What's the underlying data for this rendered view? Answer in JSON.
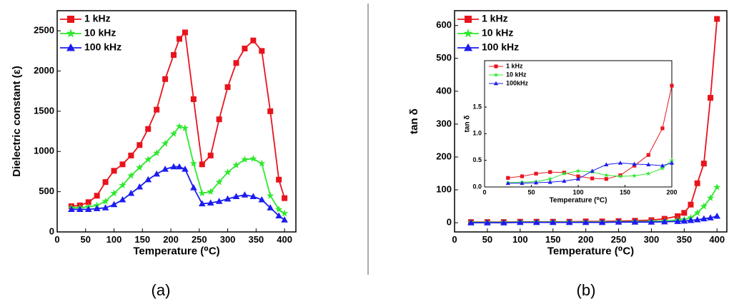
{
  "chart_data": [
    {
      "type": "line",
      "panel_label": "(a)",
      "x_label": "Temperature (⁰C)",
      "y_label": "Dielectric constant (ε)",
      "xlim": [
        0,
        420
      ],
      "xticks": [
        0,
        50,
        100,
        150,
        200,
        250,
        300,
        350,
        400
      ],
      "ylim": [
        0,
        2750
      ],
      "yticks": [
        0,
        500,
        1000,
        1500,
        2000,
        2500
      ],
      "legend": "upper left",
      "x": [
        25,
        40,
        55,
        70,
        85,
        100,
        115,
        130,
        145,
        160,
        175,
        190,
        205,
        215,
        225,
        240,
        255,
        270,
        285,
        300,
        315,
        330,
        345,
        360,
        375,
        390,
        400
      ],
      "series": [
        {
          "name": "1 kHz",
          "color": "#e8141c",
          "marker": "square",
          "values": [
            320,
            330,
            370,
            450,
            620,
            760,
            840,
            950,
            1080,
            1280,
            1520,
            1900,
            2200,
            2400,
            2480,
            1650,
            840,
            950,
            1400,
            1800,
            2100,
            2280,
            2380,
            2250,
            1500,
            650,
            420
          ]
        },
        {
          "name": "10 kHz",
          "color": "#2ee82e",
          "marker": "star",
          "values": [
            300,
            300,
            310,
            330,
            380,
            480,
            580,
            700,
            800,
            900,
            980,
            1100,
            1220,
            1310,
            1290,
            850,
            480,
            500,
            620,
            740,
            830,
            900,
            910,
            850,
            450,
            280,
            230
          ]
        },
        {
          "name": "100 kHz",
          "color": "#1c1cf0",
          "marker": "triangle",
          "values": [
            280,
            280,
            280,
            290,
            300,
            340,
            400,
            480,
            560,
            650,
            720,
            780,
            810,
            810,
            780,
            550,
            350,
            360,
            380,
            410,
            440,
            460,
            440,
            400,
            300,
            200,
            150
          ]
        }
      ]
    },
    {
      "type": "line",
      "panel_label": "(b)",
      "x_label": "Temperature (⁰C)",
      "y_label": "tan δ",
      "xlim": [
        0,
        415
      ],
      "xticks": [
        0,
        50,
        100,
        150,
        200,
        250,
        300,
        350,
        400
      ],
      "ylim": [
        -28,
        645
      ],
      "yticks": [
        0,
        100,
        200,
        300,
        400,
        500,
        600
      ],
      "legend": "upper left",
      "x": [
        25,
        50,
        75,
        100,
        125,
        150,
        175,
        200,
        225,
        250,
        275,
        300,
        320,
        340,
        350,
        360,
        370,
        380,
        390,
        400
      ],
      "series": [
        {
          "name": "1 kHz",
          "color": "#e8141c",
          "marker": "square",
          "values": [
            2,
            2,
            2,
            3,
            3,
            3,
            3,
            4,
            4,
            5,
            6,
            8,
            12,
            20,
            30,
            55,
            120,
            180,
            380,
            620
          ]
        },
        {
          "name": "10 kHz",
          "color": "#2ee82e",
          "marker": "star",
          "values": [
            1,
            1,
            1,
            2,
            2,
            2,
            2,
            2,
            2,
            3,
            3,
            4,
            5,
            8,
            10,
            15,
            30,
            50,
            75,
            108
          ]
        },
        {
          "name": "100 kHz",
          "color": "#1c1cf0",
          "marker": "triangle",
          "values": [
            0,
            0,
            0,
            1,
            1,
            1,
            1,
            1,
            1,
            2,
            2,
            2,
            3,
            4,
            5,
            7,
            9,
            12,
            15,
            20
          ]
        }
      ]
    },
    {
      "type": "line",
      "x_label": "Temperature (⁰C)",
      "y_label": "tan δ",
      "xlim": [
        0,
        200
      ],
      "xticks": [
        0,
        50,
        100,
        150,
        200
      ],
      "ylim": [
        0,
        2.37
      ],
      "yticks": [
        {
          "value": 0,
          "label": "0.0"
        },
        {
          "value": 0.5,
          "label": "0.5"
        },
        {
          "value": 1,
          "label": "1.0"
        },
        {
          "value": 1.5,
          "label": "1.5"
        }
      ],
      "legend": "upper left",
      "x": [
        25,
        40,
        55,
        70,
        85,
        100,
        115,
        130,
        145,
        160,
        175,
        190,
        200
      ],
      "series": [
        {
          "name": "1 kHz",
          "color": "#e8141c",
          "marker": "square",
          "values": [
            0.17,
            0.2,
            0.25,
            0.28,
            0.27,
            0.2,
            0.16,
            0.15,
            0.22,
            0.4,
            0.6,
            1.1,
            1.9
          ]
        },
        {
          "name": "10 kHz",
          "color": "#2ee82e",
          "marker": "star",
          "values": [
            0.08,
            0.09,
            0.1,
            0.15,
            0.25,
            0.3,
            0.28,
            0.22,
            0.2,
            0.21,
            0.25,
            0.35,
            0.5
          ]
        },
        {
          "name": "100kHz",
          "color": "#1c1cf0",
          "marker": "triangle",
          "values": [
            0.07,
            0.07,
            0.08,
            0.09,
            0.11,
            0.15,
            0.3,
            0.42,
            0.45,
            0.43,
            0.42,
            0.4,
            0.45
          ]
        }
      ]
    }
  ]
}
